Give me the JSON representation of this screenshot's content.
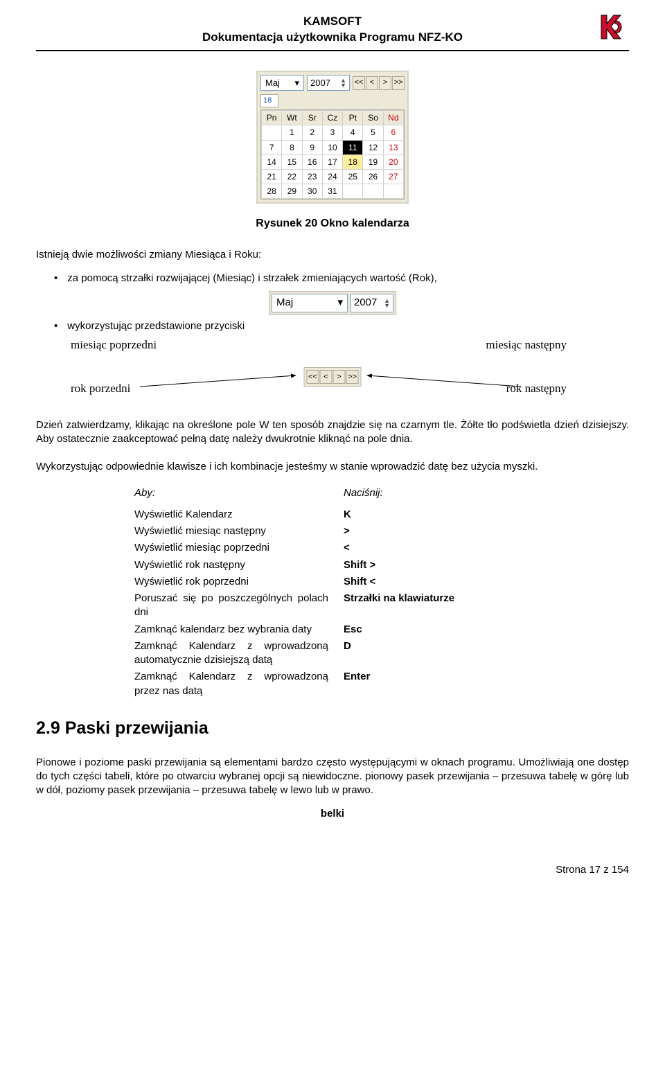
{
  "header": {
    "line1": "KAMSOFT",
    "line2": "Dokumentacja użytkownika Programu NFZ-KO"
  },
  "calendar": {
    "month": "Maj",
    "year": "2007",
    "dayLabel": "18",
    "weekdays": [
      "Pn",
      "Wt",
      "Sr",
      "Cz",
      "Pt",
      "So",
      "Nd"
    ],
    "rows": [
      [
        "",
        "1",
        "2",
        "3",
        "4",
        "5",
        "6"
      ],
      [
        "7",
        "8",
        "9",
        "10",
        "11",
        "12",
        "13"
      ],
      [
        "14",
        "15",
        "16",
        "17",
        "18",
        "19",
        "20"
      ],
      [
        "21",
        "22",
        "23",
        "24",
        "25",
        "26",
        "27"
      ],
      [
        "28",
        "29",
        "30",
        "31",
        "",
        "",
        ""
      ]
    ],
    "selected": "11",
    "today": "18",
    "caption": "Rysunek 20 Okno kalendarza"
  },
  "intro": "Istnieją dwie możliwości zmiany Miesiąca i Roku:",
  "bullet1": "za pomocą strzałki rozwijającej (Miesiąc) i strzałek zmieniających wartość (Rok),",
  "bullet2": "wykorzystując przedstawione przyciski",
  "labels": {
    "miesiacPoprzedni": "miesiąc poprzedni",
    "miesiacNastepny": "miesiąc następny",
    "rokPorzedni": "rok porzedni",
    "rokNastepny": "rok następny"
  },
  "para1": "Dzień zatwierdzamy, klikając na określone pole W ten sposób znajdzie się na czarnym tle. Żółte tło podświetla dzień dzisiejszy. Aby ostatecznie zaakceptować pełną datę należy dwukrotnie kliknąć na pole dnia.",
  "para2": "Wykorzystując odpowiednie klawisze i ich kombinacje jesteśmy w stanie wprowadzić datę bez użycia myszki.",
  "kbHeader": {
    "aby": "Aby:",
    "nacisnij": "Naciśnij:"
  },
  "kb": [
    {
      "a": "Wyświetlić Kalendarz",
      "k": "K"
    },
    {
      "a": "Wyświetlić miesiąc następny",
      "k": ">"
    },
    {
      "a": "Wyświetlić miesiąc poprzedni",
      "k": "<"
    },
    {
      "a": "Wyświetlić rok następny",
      "k": "Shift >"
    },
    {
      "a": "Wyświetlić rok poprzedni",
      "k": "Shift <"
    },
    {
      "a": "Poruszać się po poszczególnych polach dni",
      "k": "Strzałki na klawiaturze"
    },
    {
      "a": "Zamknąć kalendarz bez wybrania daty",
      "k": "Esc"
    },
    {
      "a": "Zamknąć Kalendarz z wprowadzoną automatycznie dzisiejszą datą",
      "k": "D"
    },
    {
      "a": "Zamknąć Kalendarz z wprowadzoną przez nas datą",
      "k": "Enter"
    }
  ],
  "sectionTitle": "2.9  Paski przewijania",
  "para3": "Pionowe i poziome paski przewijania są elementami bardzo często występującymi w oknach programu. Umożliwiają one dostęp do tych części tabeli, które po otwarciu wybranej opcji są niewidoczne. pionowy pasek przewijania – przesuwa tabelę w górę lub w dół, poziomy pasek przewijania – przesuwa tabelę w lewo lub w prawo.",
  "belki": "belki",
  "footer": "Strona 17 z 154"
}
